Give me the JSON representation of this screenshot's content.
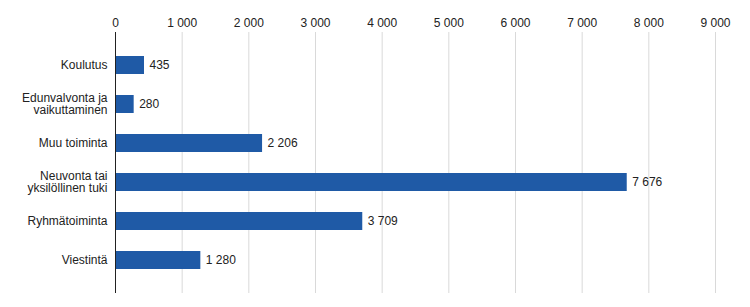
{
  "chart_data": {
    "type": "bar",
    "orientation": "horizontal",
    "categories": [
      "Koulutus",
      "Edunvalvonta ja vaikuttaminen",
      "Muu toiminta",
      "Neuvonta tai yksilöllinen tuki",
      "Ryhmätoiminta",
      "Viestintä"
    ],
    "values": [
      435,
      280,
      2206,
      7676,
      3709,
      1280
    ],
    "value_labels": [
      "435",
      "280",
      "2 206",
      "7 676",
      "3 709",
      "1 280"
    ],
    "color": "#1f5aa6",
    "xlim": [
      0,
      9000
    ],
    "xticks": [
      0,
      {
        "value": 1000,
        "label": "1 000"
      },
      {
        "value": 2000,
        "label": "2 000"
      },
      {
        "value": 3000,
        "label": "3 000"
      },
      {
        "value": 4000,
        "label": "4 000"
      },
      {
        "value": 5000,
        "label": "5 000"
      },
      {
        "value": 6000,
        "label": "6 000"
      },
      {
        "value": 7000,
        "label": "7 000"
      },
      {
        "value": 8000,
        "label": "8 000"
      },
      {
        "value": 9000,
        "label": "9 000"
      }
    ],
    "grid": true,
    "data_labels": true
  }
}
